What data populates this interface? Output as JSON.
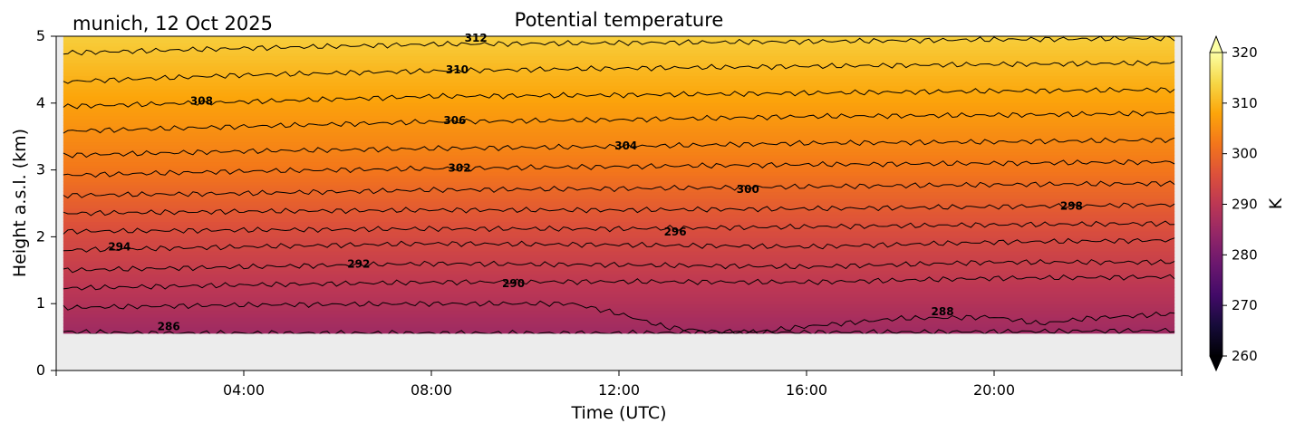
{
  "chart_data": {
    "type": "heatmap",
    "title": "Potential temperature",
    "subtitle": "munich, 12 Oct 2025",
    "xlabel": "Time (UTC)",
    "ylabel": "Height a.s.l. (km)",
    "xlim": [
      0,
      24
    ],
    "ylim": [
      0,
      5
    ],
    "xticks": [
      {
        "value": 4,
        "label": "04:00"
      },
      {
        "value": 8,
        "label": "08:00"
      },
      {
        "value": 12,
        "label": "12:00"
      },
      {
        "value": 16,
        "label": "16:00"
      },
      {
        "value": 20,
        "label": "20:00"
      }
    ],
    "yticks": [
      {
        "value": 0,
        "label": "0"
      },
      {
        "value": 1,
        "label": "1"
      },
      {
        "value": 2,
        "label": "2"
      },
      {
        "value": 3,
        "label": "3"
      },
      {
        "value": 4,
        "label": "4"
      },
      {
        "value": 5,
        "label": "5"
      }
    ],
    "data_height_range_km": [
      0.55,
      5
    ],
    "data_time_range_h": [
      0.15,
      23.85
    ],
    "missing_color": "#ececec",
    "colorbar": {
      "label": "K",
      "range": [
        260,
        320
      ],
      "extend": "both",
      "colormap": "inferno",
      "ticks": [
        {
          "value": 260,
          "label": "260"
        },
        {
          "value": 270,
          "label": "270"
        },
        {
          "value": 280,
          "label": "280"
        },
        {
          "value": 290,
          "label": "290"
        },
        {
          "value": 300,
          "label": "300"
        },
        {
          "value": 310,
          "label": "310"
        },
        {
          "value": 320,
          "label": "320"
        }
      ]
    },
    "field_anchors": [
      {
        "height_km": 0.55,
        "theta_K": 285.5
      },
      {
        "height_km": 1.0,
        "theta_K": 288.5
      },
      {
        "height_km": 2.0,
        "theta_K": 294.5
      },
      {
        "height_km": 3.0,
        "theta_K": 302.0
      },
      {
        "height_km": 4.0,
        "theta_K": 307.5
      },
      {
        "height_km": 5.0,
        "theta_K": 313.0
      }
    ],
    "contours": [
      {
        "level": 286,
        "points": [
          [
            0.15,
            0.58
          ],
          [
            2,
            0.56
          ],
          [
            4,
            0.56
          ],
          [
            8,
            0.56
          ],
          [
            12,
            0.56
          ],
          [
            14,
            0.57
          ],
          [
            16,
            0.57
          ],
          [
            20,
            0.58
          ],
          [
            23.85,
            0.6
          ]
        ]
      },
      {
        "level": 288,
        "points": [
          [
            0.15,
            0.94
          ],
          [
            4,
            0.98
          ],
          [
            8,
            1.0
          ],
          [
            11,
            1.0
          ],
          [
            12,
            0.85
          ],
          [
            13,
            0.65
          ],
          [
            14,
            0.58
          ],
          [
            15,
            0.58
          ],
          [
            16,
            0.66
          ],
          [
            18,
            0.78
          ],
          [
            20,
            0.8
          ],
          [
            21,
            0.7
          ],
          [
            22,
            0.78
          ],
          [
            23.85,
            0.85
          ]
        ]
      },
      {
        "level": 290,
        "points": [
          [
            0.15,
            1.23
          ],
          [
            4,
            1.28
          ],
          [
            8,
            1.32
          ],
          [
            12,
            1.33
          ],
          [
            16,
            1.32
          ],
          [
            20,
            1.38
          ],
          [
            23.85,
            1.4
          ]
        ]
      },
      {
        "level": 292,
        "points": [
          [
            0.15,
            1.5
          ],
          [
            4,
            1.55
          ],
          [
            8,
            1.6
          ],
          [
            12,
            1.58
          ],
          [
            16,
            1.55
          ],
          [
            20,
            1.62
          ],
          [
            23.85,
            1.62
          ]
        ]
      },
      {
        "level": 294,
        "points": [
          [
            0.15,
            1.8
          ],
          [
            4,
            1.85
          ],
          [
            8,
            1.9
          ],
          [
            12,
            1.88
          ],
          [
            16,
            1.85
          ],
          [
            20,
            1.92
          ],
          [
            23.85,
            1.95
          ]
        ]
      },
      {
        "level": 296,
        "points": [
          [
            0.15,
            2.08
          ],
          [
            4,
            2.1
          ],
          [
            8,
            2.12
          ],
          [
            12,
            2.12
          ],
          [
            16,
            2.15
          ],
          [
            20,
            2.18
          ],
          [
            23.85,
            2.2
          ]
        ]
      },
      {
        "level": 298,
        "points": [
          [
            0.15,
            2.35
          ],
          [
            4,
            2.38
          ],
          [
            8,
            2.4
          ],
          [
            12,
            2.4
          ],
          [
            16,
            2.42
          ],
          [
            20,
            2.45
          ],
          [
            23.85,
            2.48
          ]
        ]
      },
      {
        "level": 300,
        "points": [
          [
            0.15,
            2.62
          ],
          [
            4,
            2.65
          ],
          [
            8,
            2.7
          ],
          [
            12,
            2.72
          ],
          [
            16,
            2.75
          ],
          [
            20,
            2.78
          ],
          [
            23.85,
            2.8
          ]
        ]
      },
      {
        "level": 302,
        "points": [
          [
            0.15,
            2.92
          ],
          [
            4,
            2.98
          ],
          [
            8,
            3.02
          ],
          [
            12,
            3.05
          ],
          [
            16,
            3.08
          ],
          [
            20,
            3.1
          ],
          [
            23.85,
            3.12
          ]
        ]
      },
      {
        "level": 304,
        "points": [
          [
            0.15,
            3.22
          ],
          [
            4,
            3.28
          ],
          [
            8,
            3.32
          ],
          [
            12,
            3.35
          ],
          [
            16,
            3.4
          ],
          [
            20,
            3.42
          ],
          [
            23.85,
            3.45
          ]
        ]
      },
      {
        "level": 306,
        "points": [
          [
            0.15,
            3.58
          ],
          [
            4,
            3.65
          ],
          [
            8,
            3.72
          ],
          [
            12,
            3.75
          ],
          [
            16,
            3.8
          ],
          [
            20,
            3.82
          ],
          [
            23.85,
            3.85
          ]
        ]
      },
      {
        "level": 308,
        "points": [
          [
            0.15,
            3.95
          ],
          [
            4,
            4.02
          ],
          [
            8,
            4.1
          ],
          [
            12,
            4.12
          ],
          [
            16,
            4.15
          ],
          [
            20,
            4.18
          ],
          [
            23.85,
            4.2
          ]
        ]
      },
      {
        "level": 310,
        "points": [
          [
            0.15,
            4.32
          ],
          [
            4,
            4.42
          ],
          [
            8,
            4.48
          ],
          [
            12,
            4.52
          ],
          [
            16,
            4.55
          ],
          [
            20,
            4.58
          ],
          [
            23.85,
            4.6
          ]
        ]
      },
      {
        "level": 312,
        "points": [
          [
            0.15,
            4.75
          ],
          [
            4,
            4.82
          ],
          [
            8,
            4.88
          ],
          [
            12,
            4.9
          ],
          [
            16,
            4.92
          ],
          [
            20,
            4.95
          ],
          [
            23.85,
            4.97
          ]
        ]
      }
    ],
    "contour_labels": [
      {
        "text": "312",
        "x": 8.95,
        "y": 4.97
      },
      {
        "text": "310",
        "x": 8.55,
        "y": 4.5
      },
      {
        "text": "308",
        "x": 3.1,
        "y": 4.03
      },
      {
        "text": "306",
        "x": 8.5,
        "y": 3.74
      },
      {
        "text": "304",
        "x": 12.15,
        "y": 3.36
      },
      {
        "text": "302",
        "x": 8.6,
        "y": 3.03
      },
      {
        "text": "300",
        "x": 14.75,
        "y": 2.71
      },
      {
        "text": "298",
        "x": 21.65,
        "y": 2.46
      },
      {
        "text": "296",
        "x": 13.2,
        "y": 2.07
      },
      {
        "text": "294",
        "x": 1.35,
        "y": 1.85
      },
      {
        "text": "292",
        "x": 6.45,
        "y": 1.59
      },
      {
        "text": "290",
        "x": 9.75,
        "y": 1.3
      },
      {
        "text": "288",
        "x": 18.9,
        "y": 0.88
      },
      {
        "text": "286",
        "x": 2.4,
        "y": 0.66
      }
    ]
  }
}
